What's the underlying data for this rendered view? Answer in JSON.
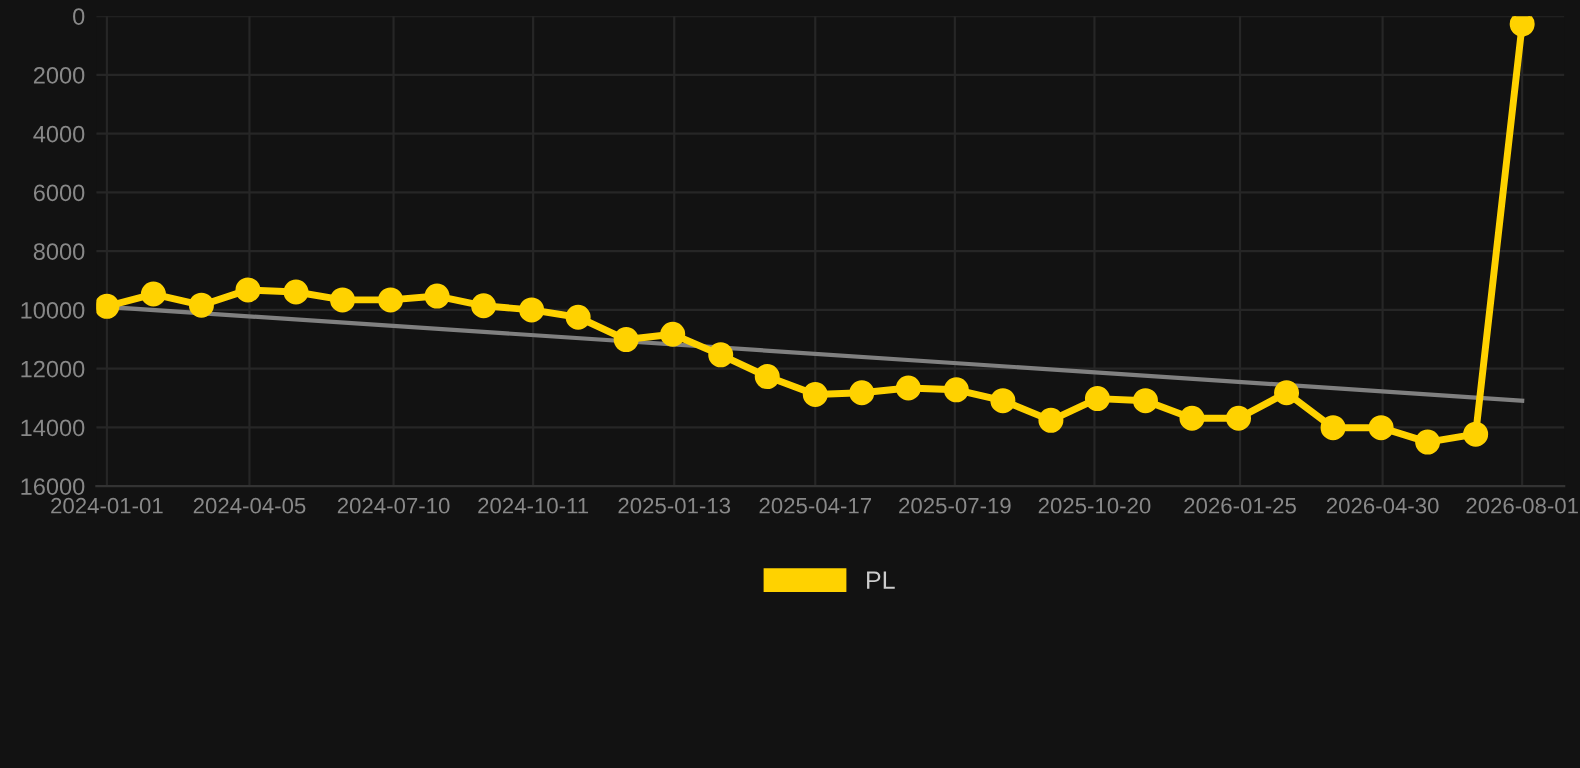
{
  "chart_data": {
    "type": "line",
    "x": [
      "2024-01-01",
      "2024-02-01",
      "2024-03-04",
      "2024-04-04",
      "2024-05-06",
      "2024-06-06",
      "2024-07-08",
      "2024-08-08",
      "2024-09-08",
      "2024-10-10",
      "2024-11-10",
      "2024-12-12",
      "2025-01-12",
      "2025-02-13",
      "2025-03-16",
      "2025-04-17",
      "2025-05-18",
      "2025-06-18",
      "2025-07-20",
      "2025-08-20",
      "2025-09-21",
      "2025-10-22",
      "2025-11-23",
      "2025-12-24",
      "2026-01-24",
      "2026-02-25",
      "2026-03-28",
      "2026-04-29",
      "2026-05-30",
      "2026-07-01",
      "2026-08-01"
    ],
    "series": [
      {
        "name": "PL",
        "color": "#ffd200",
        "marker": "circle",
        "values": [
          9880,
          9460,
          9840,
          9320,
          9390,
          9660,
          9660,
          9530,
          9860,
          10000,
          10250,
          11010,
          10830,
          11530,
          12270,
          12880,
          12820,
          12660,
          12720,
          13090,
          13760,
          13020,
          13090,
          13690,
          13690,
          12820,
          14010,
          14010,
          14500,
          14230,
          270
        ]
      },
      {
        "type": "line",
        "color": "#808080",
        "marker": "none",
        "x": [
          "2024-01-01",
          "2026-08-01"
        ],
        "values": [
          9900,
          13090
        ]
      }
    ],
    "ylim": [
      16000,
      0
    ],
    "yticks": [
      0,
      2000,
      4000,
      6000,
      8000,
      10000,
      12000,
      14000,
      16000
    ],
    "xlim": [
      "2023-12-25",
      "2026-08-29"
    ],
    "xticks": [
      {
        "value": "2024-01-01",
        "label": "2024-01-01"
      },
      {
        "value": "2024-04-05",
        "label": "2024-04-05"
      },
      {
        "value": "2024-07-10",
        "label": "2024-07-10"
      },
      {
        "value": "2024-10-11",
        "label": "2024-10-11"
      },
      {
        "value": "2025-01-13",
        "label": "2025-01-13"
      },
      {
        "value": "2025-04-17",
        "label": "2025-04-17"
      },
      {
        "value": "2025-07-19",
        "label": "2025-07-19"
      },
      {
        "value": "2025-10-20",
        "label": "2025-10-20"
      },
      {
        "value": "2026-01-25",
        "label": "2026-01-25"
      },
      {
        "value": "2026-04-30",
        "label": "2026-04-30"
      },
      {
        "value": "2026-08-01",
        "label": "2026-08-01"
      }
    ],
    "grid": true,
    "legend": "bottom"
  }
}
